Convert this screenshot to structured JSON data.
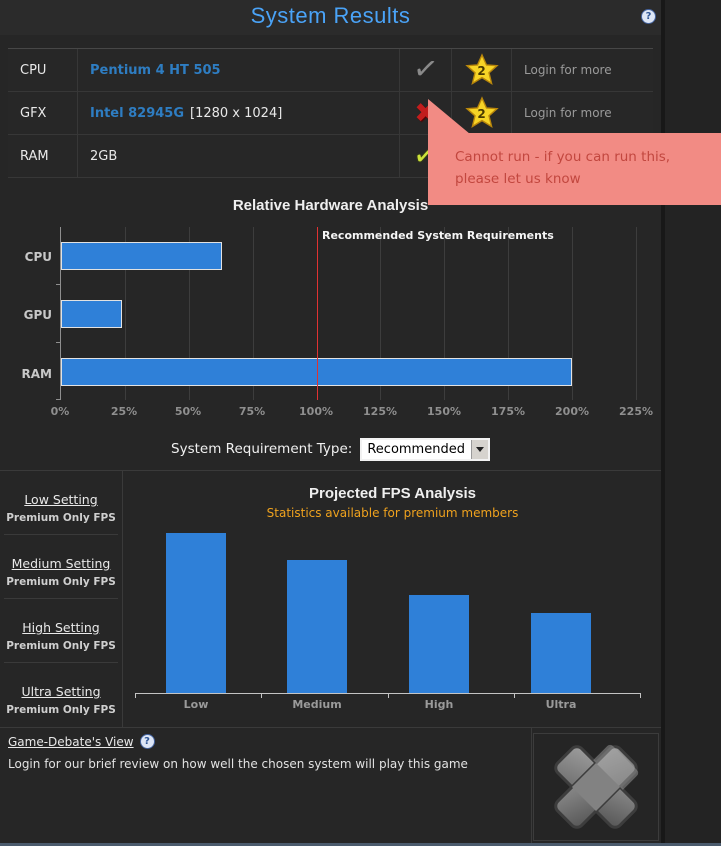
{
  "colors": {
    "accent_blue": "#4aa3f7",
    "link_blue": "#2e7dc2",
    "bar_blue": "#2f80d8",
    "reference_red": "#e03232",
    "tooltip_bg": "#f28b84",
    "tooltip_text": "#c2473f",
    "subtitle_orange": "#efa21e"
  },
  "icons": {
    "check": "✓",
    "cross": "✖",
    "question": "?"
  },
  "header": {
    "title": "System Results"
  },
  "system_table": {
    "rows": [
      {
        "label": "CPU",
        "name": "Pentium 4 HT 505",
        "suffix": "",
        "status": "pass-gray",
        "stars": "2",
        "more": "Login for more"
      },
      {
        "label": "GFX",
        "name": "Intel 82945G",
        "suffix": "[1280 x 1024]",
        "status": "fail",
        "stars": "2",
        "more": "Login for more"
      },
      {
        "label": "RAM",
        "name": "2GB",
        "suffix": "",
        "status": "pass-green",
        "stars": "",
        "more": ""
      }
    ]
  },
  "tooltip": {
    "line1": "Cannot run - if you can run this,",
    "line2": "please let us know"
  },
  "hardware_chart": {
    "chart_data": {
      "type": "bar",
      "orientation": "horizontal",
      "title": "Relative Hardware Analysis",
      "categories": [
        "CPU",
        "GPU",
        "RAM"
      ],
      "values_percent": [
        63,
        24,
        200
      ],
      "x_tick_values": [
        0,
        25,
        50,
        75,
        100,
        125,
        150,
        175,
        200,
        225
      ],
      "x_tick_labels": [
        "0%",
        "25%",
        "50%",
        "75%",
        "100%",
        "125%",
        "150%",
        "175%",
        "200%",
        "225%"
      ],
      "xlim": [
        0,
        225
      ],
      "grid": "vertical",
      "bar_color": "#2f80d8",
      "reference_line": {
        "value": 100,
        "label": "Recommended System Requirements",
        "color": "#e03232"
      }
    }
  },
  "requirement_type": {
    "label": "System Requirement Type:",
    "selected": "Recommended"
  },
  "fps": {
    "sidebar": [
      {
        "title": "Low Setting",
        "subtitle": "Premium Only FPS"
      },
      {
        "title": "Medium Setting",
        "subtitle": "Premium Only FPS"
      },
      {
        "title": "High Setting",
        "subtitle": "Premium Only FPS"
      },
      {
        "title": "Ultra Setting",
        "subtitle": "Premium Only FPS"
      }
    ],
    "title": "Projected FPS Analysis",
    "subtitle": "Statistics available for premium members",
    "chart_data": {
      "type": "bar",
      "title": "Projected FPS Analysis",
      "categories": [
        "Low",
        "Medium",
        "High",
        "Ultra"
      ],
      "values_percent_of_max": [
        100,
        83,
        61,
        50
      ],
      "y_axis": "unlabeled",
      "bar_color": "#2f80d8"
    }
  },
  "footer": {
    "view_title": "Game-Debate's View",
    "view_text": "Login for our brief review on how well the chosen system will play this game"
  }
}
